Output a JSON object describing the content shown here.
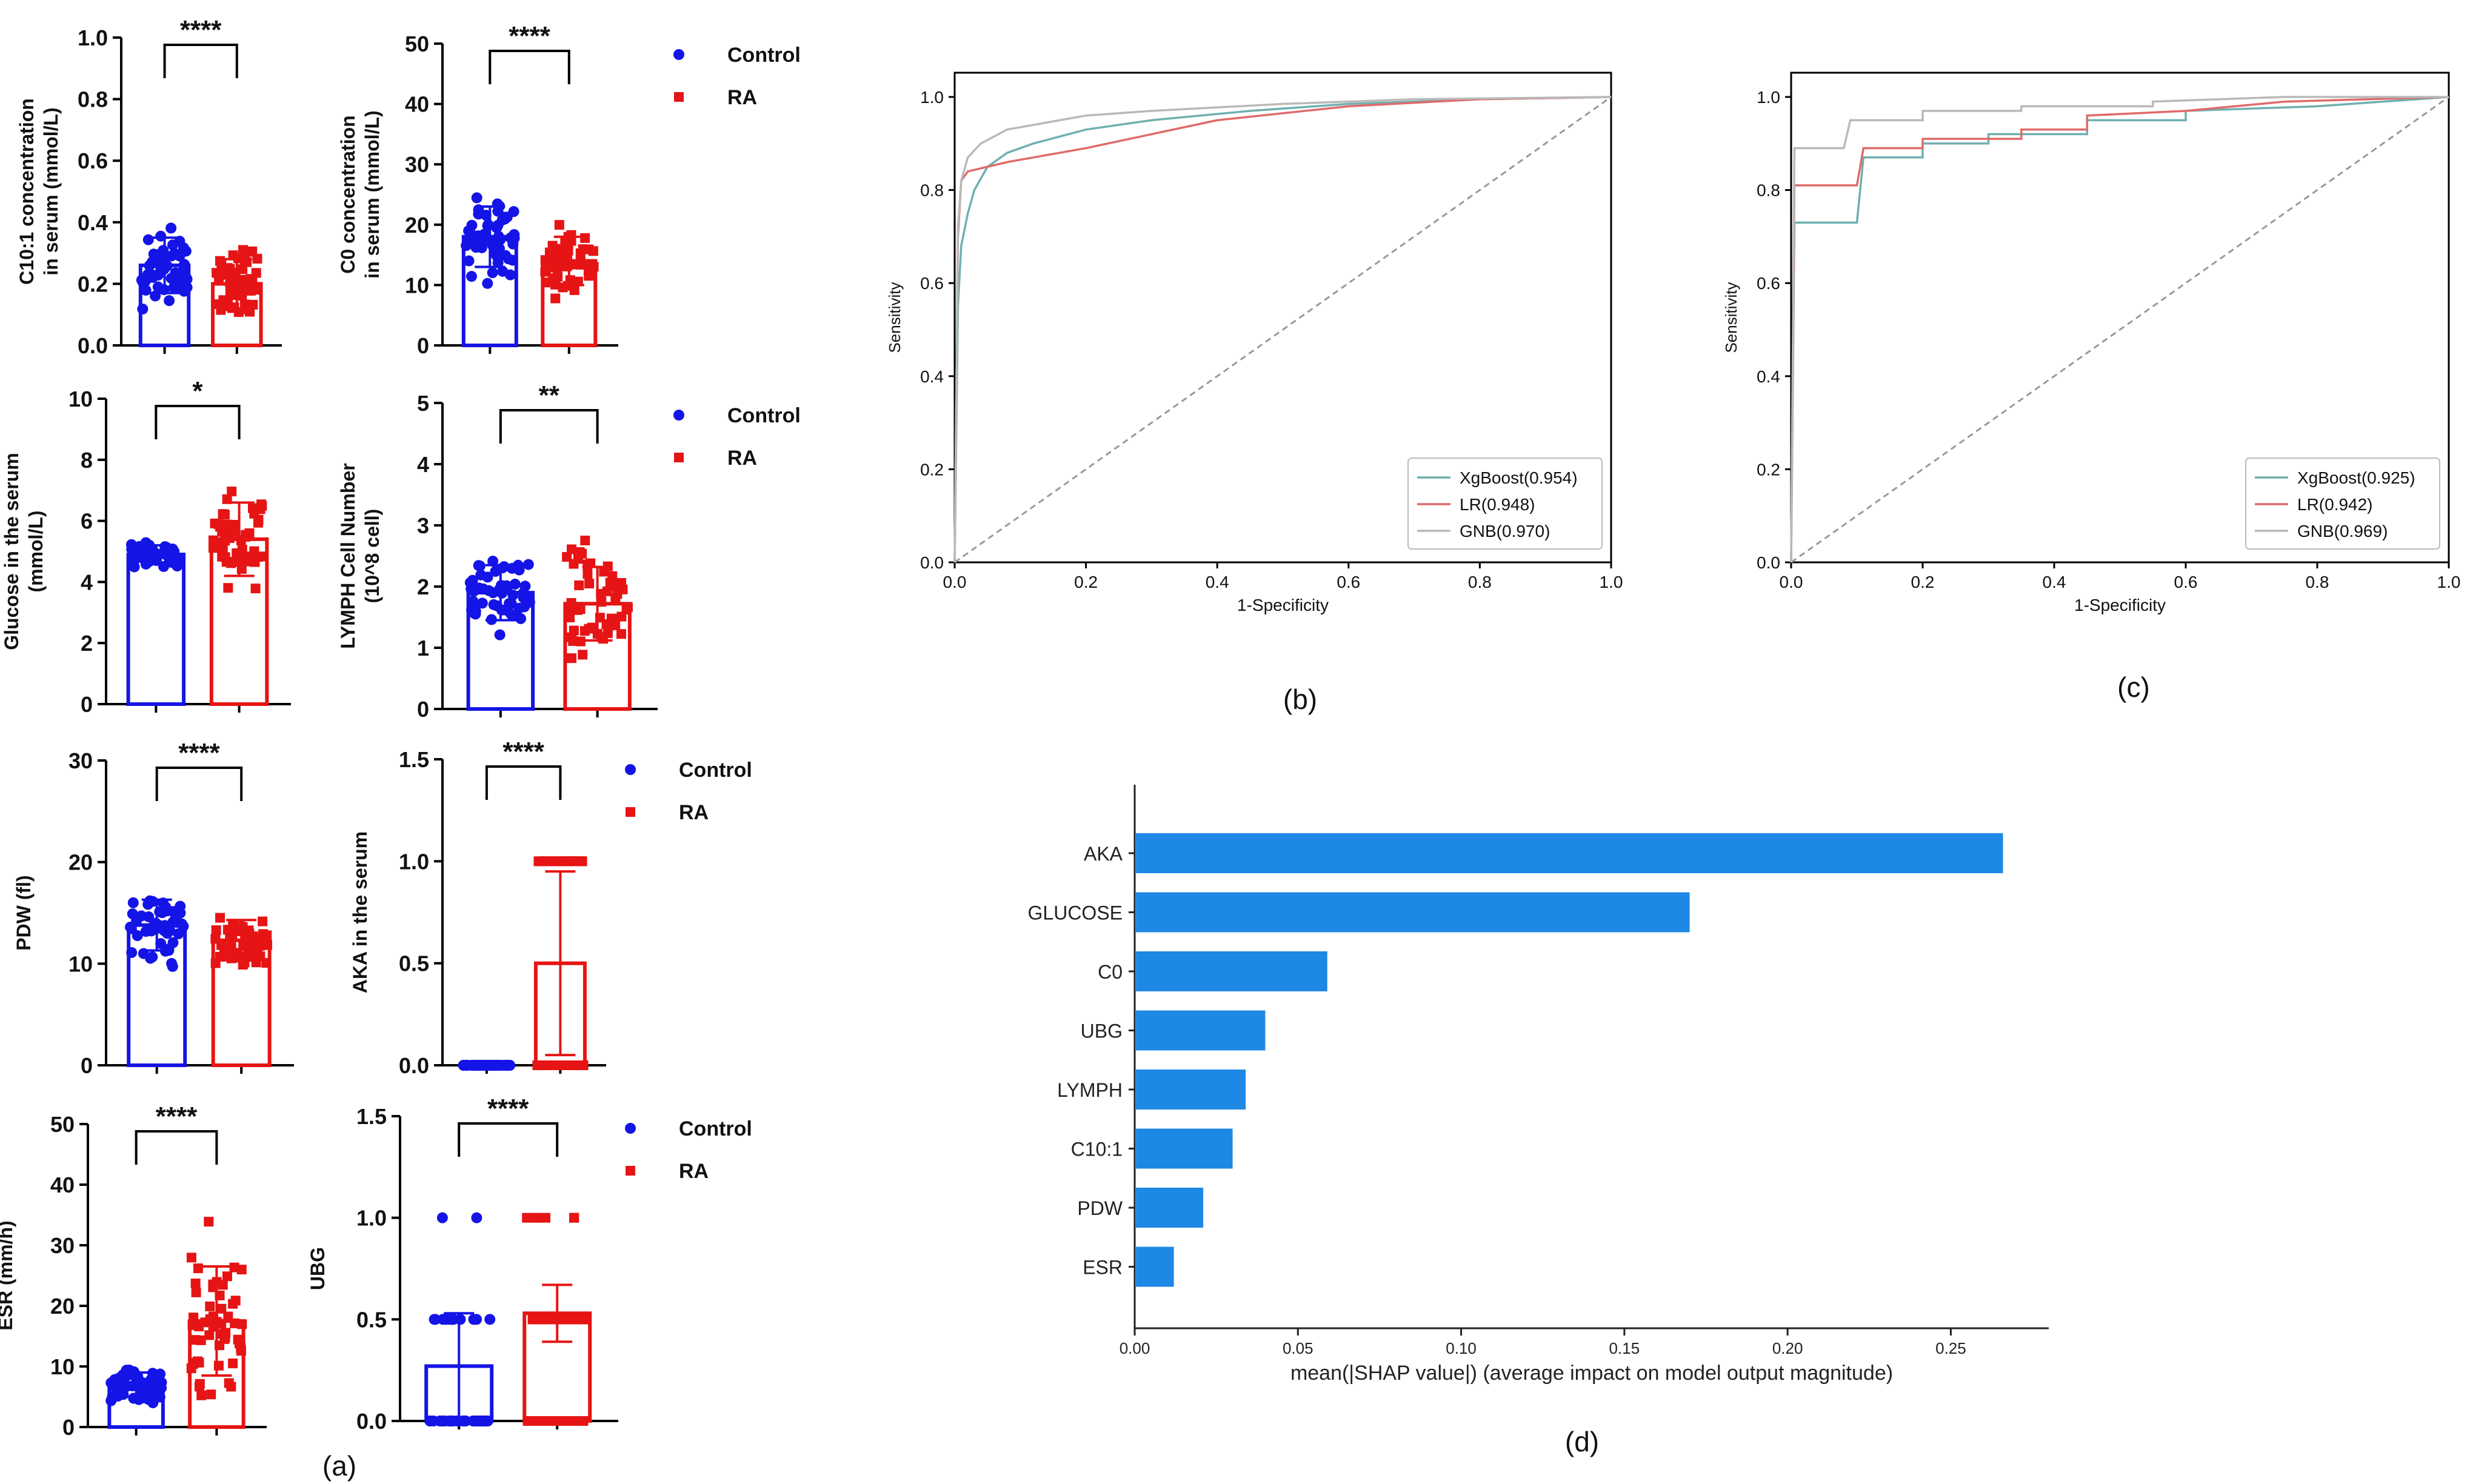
{
  "panel_labels": {
    "a": "(a)",
    "b": "(b)",
    "c": "(c)",
    "d": "(d)"
  },
  "legend_labels": {
    "control": "Control",
    "ra": "RA"
  },
  "colors": {
    "control": "#1414e6",
    "ra": "#e61414",
    "xgb": "#6fb0b0",
    "lr": "#e06a6a",
    "gnb": "#b9b9b9",
    "shap": "#1e88e5",
    "diag": "#999999"
  },
  "chart_data": [
    {
      "id": "c101",
      "type": "bar",
      "title": "",
      "ylabel": [
        "C10:1 concentration",
        "in serum (mmol/L)"
      ],
      "ylim": [
        0,
        1.0
      ],
      "ytick_labels": [
        "0.0",
        "0.2",
        "0.4",
        "0.6",
        "0.8",
        "1.0"
      ],
      "categories": [
        "Control",
        "RA"
      ],
      "values": [
        0.26,
        0.2
      ],
      "sd": [
        0.09,
        0.08
      ],
      "significance": "****",
      "legend": true
    },
    {
      "id": "c0",
      "type": "bar",
      "title": "",
      "ylabel": [
        "C0 concentration",
        "in serum (mmol/L)"
      ],
      "ylim": [
        0,
        50
      ],
      "ytick_labels": [
        "0",
        "10",
        "20",
        "30",
        "40",
        "50"
      ],
      "categories": [
        "Control",
        "RA"
      ],
      "values": [
        18,
        14
      ],
      "sd": [
        5,
        4
      ],
      "significance": "****",
      "legend": false
    },
    {
      "id": "glucose",
      "type": "bar",
      "title": "",
      "ylabel": [
        "Glucose in the serum",
        "(mmol/L)"
      ],
      "ylim": [
        0,
        10
      ],
      "ytick_labels": [
        "0",
        "2",
        "4",
        "6",
        "8",
        "10"
      ],
      "categories": [
        "Control",
        "RA"
      ],
      "values": [
        4.9,
        5.4
      ],
      "sd": [
        0.3,
        1.2
      ],
      "significance": "*",
      "legend": true
    },
    {
      "id": "lymph",
      "type": "bar",
      "title": "",
      "ylabel": [
        "LYMPH Cell Number",
        "(10^8 cell)"
      ],
      "ylim": [
        0,
        5
      ],
      "ytick_labels": [
        "0",
        "1",
        "2",
        "3",
        "4",
        "5"
      ],
      "categories": [
        "Control",
        "RA"
      ],
      "values": [
        1.9,
        1.72
      ],
      "sd": [
        0.45,
        0.6
      ],
      "significance": "**",
      "legend": false
    },
    {
      "id": "pdw",
      "type": "bar",
      "title": "",
      "ylabel": [
        "PDW (fl)"
      ],
      "ylim": [
        0,
        30
      ],
      "ytick_labels": [
        "0",
        "10",
        "20",
        "30"
      ],
      "categories": [
        "Control",
        "RA"
      ],
      "values": [
        13.8,
        12.3
      ],
      "sd": [
        2.5,
        2.0
      ],
      "significance": "****",
      "legend": true
    },
    {
      "id": "aka",
      "type": "bar",
      "title": "",
      "ylabel": [
        "AKA in the serum"
      ],
      "ylim": [
        0,
        1.5
      ],
      "ytick_labels": [
        "0.0",
        "0.5",
        "1.0",
        "1.5"
      ],
      "categories": [
        "Control",
        "RA"
      ],
      "values": [
        0.0,
        0.5
      ],
      "sd": [
        0.0,
        0.45
      ],
      "significance": "****",
      "legend": false
    },
    {
      "id": "esr",
      "type": "bar",
      "title": "",
      "ylabel": [
        "ESR (mm/h)"
      ],
      "ylim": [
        0,
        50
      ],
      "ytick_labels": [
        "0",
        "10",
        "20",
        "30",
        "40",
        "50"
      ],
      "categories": [
        "Control",
        "RA"
      ],
      "values": [
        7,
        17.5
      ],
      "sd": [
        2,
        9
      ],
      "significance": "****",
      "legend": true
    },
    {
      "id": "ubg",
      "type": "bar",
      "title": "",
      "ylabel": [
        "UBG"
      ],
      "ylim": [
        0,
        1.5
      ],
      "ytick_labels": [
        "0.0",
        "0.5",
        "1.0",
        "1.5"
      ],
      "categories": [
        "Control",
        "RA"
      ],
      "values": [
        0.27,
        0.53
      ],
      "sd": [
        0.26,
        0.14
      ],
      "significance": "****",
      "legend": false
    },
    {
      "id": "roc_b",
      "type": "line",
      "title": "",
      "xlabel": "1-Specificity",
      "ylabel": "Sensitivity",
      "xlim": [
        0,
        1
      ],
      "ylim": [
        0,
        1
      ],
      "xtick_labels": [
        "0.0",
        "0.2",
        "0.4",
        "0.6",
        "0.8",
        "1.0"
      ],
      "ytick_labels": [
        "0.0",
        "0.2",
        "0.4",
        "0.6",
        "0.8",
        "1.0"
      ],
      "series": [
        {
          "name": "XgBoost(0.954)",
          "x": [
            0,
            0.005,
            0.01,
            0.02,
            0.03,
            0.05,
            0.08,
            0.12,
            0.2,
            0.3,
            0.45,
            0.6,
            0.8,
            1.0
          ],
          "y": [
            0,
            0.55,
            0.68,
            0.75,
            0.8,
            0.85,
            0.88,
            0.9,
            0.93,
            0.95,
            0.97,
            0.985,
            0.995,
            1.0
          ]
        },
        {
          "name": "LR(0.948)",
          "x": [
            0,
            0.005,
            0.01,
            0.02,
            0.05,
            0.08,
            0.12,
            0.2,
            0.3,
            0.4,
            0.6,
            0.8,
            1.0
          ],
          "y": [
            0,
            0.7,
            0.82,
            0.84,
            0.85,
            0.86,
            0.87,
            0.89,
            0.92,
            0.95,
            0.98,
            0.995,
            1.0
          ]
        },
        {
          "name": "GNB(0.970)",
          "x": [
            0,
            0.005,
            0.01,
            0.02,
            0.04,
            0.08,
            0.12,
            0.2,
            0.3,
            0.5,
            0.7,
            1.0
          ],
          "y": [
            0,
            0.72,
            0.82,
            0.87,
            0.9,
            0.93,
            0.94,
            0.96,
            0.97,
            0.985,
            0.995,
            1.0
          ]
        }
      ],
      "diagonal": true,
      "legend": "bottom-right"
    },
    {
      "id": "roc_c",
      "type": "line",
      "title": "",
      "xlabel": "1-Specificity",
      "ylabel": "Sensitivity",
      "xlim": [
        0,
        1
      ],
      "ylim": [
        0,
        1
      ],
      "xtick_labels": [
        "0.0",
        "0.2",
        "0.4",
        "0.6",
        "0.8",
        "1.0"
      ],
      "ytick_labels": [
        "0.0",
        "0.2",
        "0.4",
        "0.6",
        "0.8",
        "1.0"
      ],
      "series": [
        {
          "name": "XgBoost(0.925)",
          "x": [
            0,
            0.005,
            0.1,
            0.11,
            0.2,
            0.2,
            0.3,
            0.3,
            0.45,
            0.45,
            0.6,
            0.6,
            0.8,
            1.0
          ],
          "y": [
            0,
            0.73,
            0.73,
            0.87,
            0.87,
            0.9,
            0.9,
            0.92,
            0.92,
            0.95,
            0.95,
            0.97,
            0.98,
            1.0
          ]
        },
        {
          "name": "LR(0.942)",
          "x": [
            0,
            0.005,
            0.1,
            0.11,
            0.2,
            0.2,
            0.35,
            0.35,
            0.45,
            0.45,
            0.6,
            0.75,
            1.0
          ],
          "y": [
            0,
            0.81,
            0.81,
            0.89,
            0.89,
            0.91,
            0.91,
            0.93,
            0.93,
            0.96,
            0.97,
            0.99,
            1.0
          ]
        },
        {
          "name": "GNB(0.969)",
          "x": [
            0,
            0.005,
            0.08,
            0.09,
            0.2,
            0.2,
            0.35,
            0.35,
            0.55,
            0.55,
            0.75,
            1.0
          ],
          "y": [
            0,
            0.89,
            0.89,
            0.95,
            0.95,
            0.97,
            0.97,
            0.98,
            0.98,
            0.99,
            1.0,
            1.0
          ]
        }
      ],
      "diagonal": true,
      "legend": "bottom-right"
    },
    {
      "id": "shap",
      "type": "bar",
      "orientation": "horizontal",
      "title": "",
      "xlabel": "mean(|SHAP value|) (average impact on model output magnitude)",
      "xlim": [
        0,
        0.28
      ],
      "xtick_labels": [
        "0.00",
        "0.05",
        "0.10",
        "0.15",
        "0.20",
        "0.25"
      ],
      "categories": [
        "AKA",
        "GLUCOSE",
        "C0",
        "UBG",
        "LYMPH",
        "C10:1",
        "PDW",
        "ESR"
      ],
      "values": [
        0.266,
        0.17,
        0.059,
        0.04,
        0.034,
        0.03,
        0.021,
        0.012
      ]
    }
  ]
}
